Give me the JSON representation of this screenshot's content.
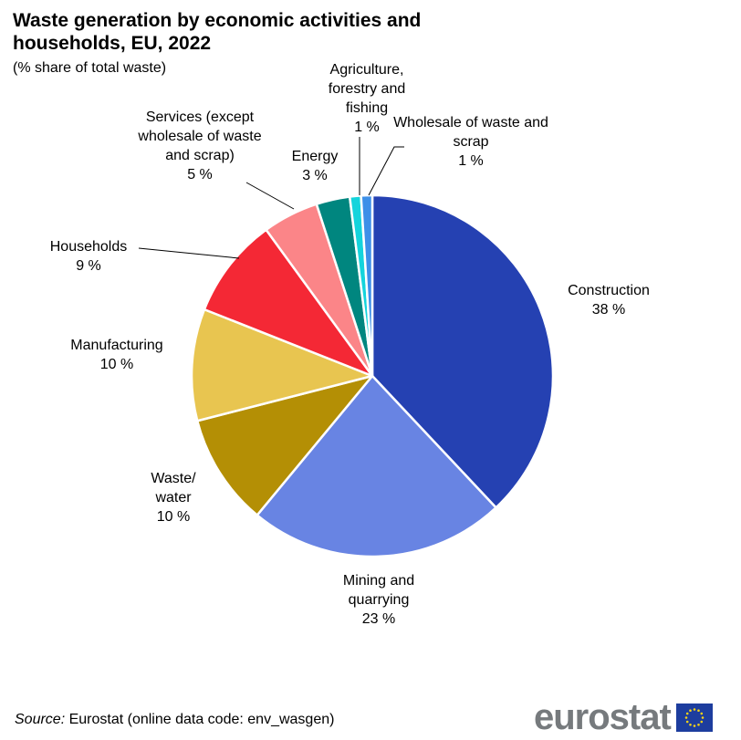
{
  "chart_data": {
    "type": "pie",
    "title": "Waste generation by economic activities and households, EU, 2022",
    "subtitle": "(% share of total waste)",
    "unit": "%",
    "slices": [
      {
        "name": "Construction",
        "value": 38,
        "label": "38 %",
        "color": "#2541b2"
      },
      {
        "name": "Mining and quarrying",
        "value": 23,
        "label": "23 %",
        "color": "#6884e3"
      },
      {
        "name": "Waste/ water",
        "value": 10,
        "label": "10 %",
        "color": "#b48f05"
      },
      {
        "name": "Manufacturing",
        "value": 10,
        "label": "10 %",
        "color": "#e8c550"
      },
      {
        "name": "Households",
        "value": 9,
        "label": "9 %",
        "color": "#f42835"
      },
      {
        "name": "Services (except wholesale of waste and scrap)",
        "value": 5,
        "label": "5 %",
        "color": "#fb8588"
      },
      {
        "name": "Energy",
        "value": 3,
        "label": "3 %",
        "color": "#00867f"
      },
      {
        "name": "Agriculture, forestry and fishing",
        "value": 1,
        "label": "1 %",
        "color": "#14d4dc"
      },
      {
        "name": "Wholesale of waste and scrap",
        "value": 1,
        "label": "1 %",
        "color": "#3d8fe8"
      }
    ]
  },
  "source_label": "Source:",
  "source_text": " Eurostat (online data code: env_wasgen)",
  "logo_text": "eurostat"
}
